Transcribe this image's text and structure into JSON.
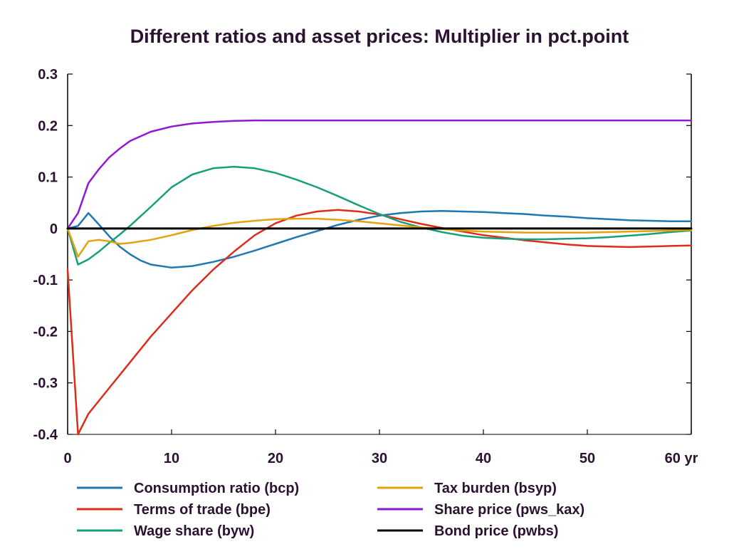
{
  "chart_data": {
    "type": "line",
    "title": "Different ratios and asset prices: Multiplier in pct.point",
    "xlabel": "",
    "ylabel": "",
    "xlim": [
      0,
      60
    ],
    "ylim": [
      -0.4,
      0.3
    ],
    "x_ticks": [
      "0",
      "10",
      "20",
      "30",
      "40",
      "50",
      "60 yr"
    ],
    "x_tick_values": [
      0,
      10,
      20,
      30,
      40,
      50,
      60
    ],
    "y_ticks": [
      "0.3",
      "0.2",
      "0.1",
      "0",
      "-0.1",
      "-0.2",
      "-0.3",
      "-0.4"
    ],
    "y_tick_values": [
      0.3,
      0.2,
      0.1,
      0,
      -0.1,
      -0.2,
      -0.3,
      -0.4
    ],
    "grid": false,
    "legend_position": "bottom",
    "series": [
      {
        "name": "Consumption ratio (bcp)",
        "color": "#1f77b4",
        "x": [
          0,
          1,
          2,
          3,
          4,
          5,
          6,
          7,
          8,
          10,
          12,
          14,
          16,
          18,
          20,
          22,
          24,
          26,
          28,
          30,
          32,
          34,
          36,
          38,
          40,
          42,
          44,
          46,
          48,
          50,
          52,
          54,
          56,
          58,
          60
        ],
        "y": [
          0,
          0.005,
          0.03,
          0.008,
          -0.015,
          -0.035,
          -0.05,
          -0.062,
          -0.07,
          -0.076,
          -0.073,
          -0.065,
          -0.055,
          -0.043,
          -0.03,
          -0.017,
          -0.005,
          0.007,
          0.017,
          0.025,
          0.03,
          0.033,
          0.034,
          0.033,
          0.032,
          0.03,
          0.028,
          0.025,
          0.023,
          0.02,
          0.018,
          0.016,
          0.015,
          0.014,
          0.014
        ]
      },
      {
        "name": "Terms of trade (bpe)",
        "color": "#dd2c19",
        "x": [
          0,
          1,
          2,
          3,
          4,
          6,
          8,
          10,
          12,
          14,
          16,
          18,
          20,
          22,
          24,
          26,
          28,
          30,
          32,
          34,
          36,
          38,
          40,
          42,
          44,
          46,
          48,
          50,
          52,
          54,
          56,
          58,
          60
        ],
        "y": [
          -0.08,
          -0.4,
          -0.36,
          -0.335,
          -0.31,
          -0.26,
          -0.21,
          -0.165,
          -0.12,
          -0.08,
          -0.045,
          -0.013,
          0.01,
          0.025,
          0.033,
          0.036,
          0.033,
          0.027,
          0.018,
          0.009,
          0.001,
          -0.006,
          -0.013,
          -0.018,
          -0.023,
          -0.027,
          -0.031,
          -0.034,
          -0.035,
          -0.036,
          -0.035,
          -0.034,
          -0.033
        ]
      },
      {
        "name": "Wage share (byw)",
        "color": "#16a07a",
        "x": [
          0,
          1,
          2,
          3,
          4,
          5,
          6,
          8,
          10,
          12,
          14,
          16,
          18,
          20,
          22,
          24,
          26,
          28,
          30,
          32,
          34,
          36,
          38,
          40,
          42,
          44,
          46,
          48,
          50,
          52,
          54,
          56,
          58,
          60
        ],
        "y": [
          0,
          -0.07,
          -0.06,
          -0.045,
          -0.028,
          -0.012,
          0.005,
          0.042,
          0.08,
          0.105,
          0.117,
          0.12,
          0.117,
          0.108,
          0.095,
          0.08,
          0.063,
          0.045,
          0.028,
          0.013,
          0.002,
          -0.007,
          -0.014,
          -0.018,
          -0.02,
          -0.021,
          -0.021,
          -0.02,
          -0.019,
          -0.017,
          -0.014,
          -0.011,
          -0.007,
          -0.004
        ]
      },
      {
        "name": "Tax burden (bsyp)",
        "color": "#e6a10d",
        "x": [
          0,
          1,
          2,
          3,
          4,
          5,
          6,
          8,
          10,
          12,
          14,
          16,
          18,
          20,
          22,
          24,
          26,
          28,
          30,
          32,
          34,
          36,
          38,
          40,
          42,
          44,
          46,
          48,
          50,
          52,
          54,
          56,
          58,
          60
        ],
        "y": [
          0,
          -0.055,
          -0.025,
          -0.022,
          -0.025,
          -0.03,
          -0.028,
          -0.022,
          -0.013,
          -0.003,
          0.005,
          0.011,
          0.015,
          0.018,
          0.019,
          0.019,
          0.017,
          0.014,
          0.01,
          0.006,
          0.002,
          -0.001,
          -0.004,
          -0.006,
          -0.007,
          -0.008,
          -0.008,
          -0.008,
          -0.008,
          -0.007,
          -0.006,
          -0.005,
          -0.004,
          -0.003
        ]
      },
      {
        "name": "Share price (pws_kax)",
        "color": "#9217d4",
        "x": [
          0,
          1,
          2,
          3,
          4,
          5,
          6,
          8,
          10,
          12,
          14,
          16,
          18,
          20,
          25,
          30,
          40,
          50,
          60
        ],
        "y": [
          0,
          0.03,
          0.088,
          0.115,
          0.138,
          0.155,
          0.17,
          0.188,
          0.198,
          0.204,
          0.207,
          0.209,
          0.21,
          0.21,
          0.21,
          0.21,
          0.21,
          0.21,
          0.21
        ]
      },
      {
        "name": "Bond price (pwbs)",
        "color": "#000000",
        "x": [
          0,
          60
        ],
        "y": [
          0,
          0
        ]
      }
    ]
  }
}
